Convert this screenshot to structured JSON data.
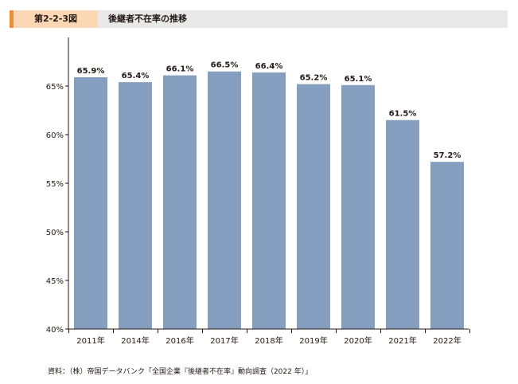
{
  "header": {
    "figure_number": "第2-2-3図",
    "title": "後継者不在率の推移"
  },
  "colors": {
    "bar": "#849fbf",
    "accent": "#ef8e3a",
    "figure_number_bg": "#fbd7b3",
    "header_bg": "#e9e9e9"
  },
  "chart_data": {
    "type": "bar",
    "categories": [
      "2011年",
      "2014年",
      "2016年",
      "2017年",
      "2018年",
      "2019年",
      "2020年",
      "2021年",
      "2022年"
    ],
    "values": [
      65.9,
      65.4,
      66.1,
      66.5,
      66.4,
      65.2,
      65.1,
      61.5,
      57.2
    ],
    "data_labels": [
      "65.9%",
      "65.4%",
      "66.1%",
      "66.5%",
      "66.4%",
      "65.2%",
      "65.1%",
      "61.5%",
      "57.2%"
    ],
    "ylim": [
      40,
      70
    ],
    "yticks": [
      40,
      45,
      50,
      55,
      60,
      65
    ],
    "ytick_labels": [
      "40%",
      "45%",
      "50%",
      "55%",
      "60%",
      "65%"
    ],
    "grid": false,
    "legend": "none"
  },
  "source_note": "資料：（株）帝国データバンク「全国企業『後継者不在率』動向調査（2022 年）」"
}
